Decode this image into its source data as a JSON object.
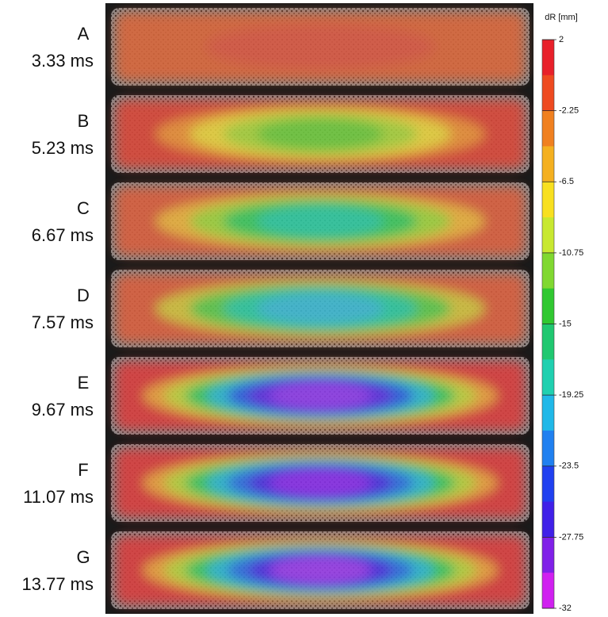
{
  "panels": [
    {
      "letter": "A",
      "time": "3.33 ms",
      "colors": [
        "#d8683e",
        "#d85a44"
      ]
    },
    {
      "letter": "B",
      "time": "5.23 ms",
      "colors": [
        "#d84a3a",
        "#e8903a",
        "#e6d040",
        "#a8d040",
        "#70c840"
      ]
    },
    {
      "letter": "C",
      "time": "6.67 ms",
      "colors": [
        "#d86040",
        "#e8b040",
        "#a0d040",
        "#40c860",
        "#30c8a0"
      ]
    },
    {
      "letter": "D",
      "time": "7.57 ms",
      "colors": [
        "#d86040",
        "#d0c040",
        "#60c850",
        "#30c8a0",
        "#40b8d0"
      ]
    },
    {
      "letter": "E",
      "time": "9.67 ms",
      "colors": [
        "#d84040",
        "#e8a040",
        "#c0d040",
        "#40c860",
        "#30b8d0",
        "#3060e0",
        "#6030e0",
        "#9040e8"
      ]
    },
    {
      "letter": "F",
      "time": "11.07 ms",
      "colors": [
        "#d84040",
        "#e8a040",
        "#b8d040",
        "#40c860",
        "#30b8d0",
        "#3070e0",
        "#5030e0",
        "#8a30e8"
      ]
    },
    {
      "letter": "G",
      "time": "13.77 ms",
      "colors": [
        "#d84040",
        "#e8a040",
        "#b8d040",
        "#40c860",
        "#30b8d0",
        "#3070e0",
        "#5030e0",
        "#9a40e8"
      ]
    }
  ],
  "colorbar": {
    "title": "dR [mm]",
    "lim": [
      2,
      -32
    ],
    "ticks": [
      2,
      -2.25,
      -6.5,
      -10.75,
      -15,
      -19.25,
      -23.5,
      -27.75,
      -32
    ],
    "colors": [
      "#e8202a",
      "#ee4a20",
      "#f08020",
      "#f4b020",
      "#f8e020",
      "#c8e830",
      "#80d830",
      "#30c830",
      "#20c870",
      "#20d0b0",
      "#20b8e8",
      "#2080f0",
      "#2040f0",
      "#4020e8",
      "#8020e8",
      "#d020f0"
    ]
  }
}
